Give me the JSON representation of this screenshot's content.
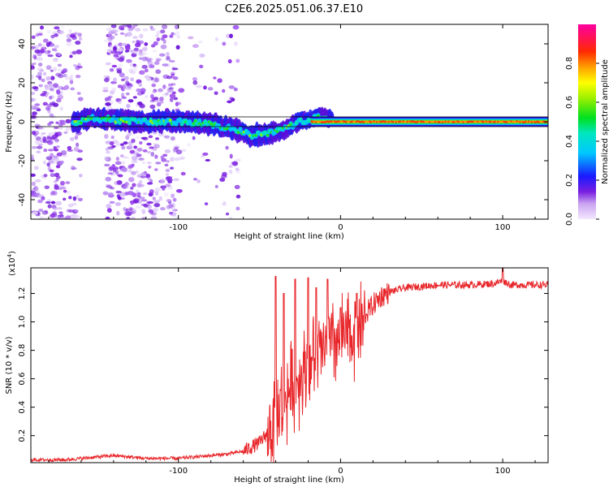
{
  "chart_data": [
    {
      "type": "heatmap",
      "title": "C2E6.2025.051.06.37.E10",
      "xlabel": "Height of straight line (km)",
      "ylabel": "Frequency (Hz)",
      "xlim": [
        -191,
        128
      ],
      "ylim": [
        -50,
        50
      ],
      "xticks": [
        "-100",
        "0",
        "100"
      ],
      "yticks": [
        "40",
        "20",
        "0",
        "-20",
        "-40"
      ],
      "colorbar_label": "Normalized spectral amplitude",
      "colorbar_range": [
        0,
        1
      ],
      "colorbar_ticks": [
        "0.0",
        "0.2",
        "0.4",
        "0.6",
        "0.8"
      ],
      "ridge": [
        {
          "x": -160,
          "y": 2
        },
        {
          "x": -140,
          "y": 1
        },
        {
          "x": -120,
          "y": 0
        },
        {
          "x": -100,
          "y": 0
        },
        {
          "x": -80,
          "y": -1
        },
        {
          "x": -65,
          "y": -4
        },
        {
          "x": -55,
          "y": -7
        },
        {
          "x": -45,
          "y": -6
        },
        {
          "x": -35,
          "y": -4
        },
        {
          "x": -25,
          "y": 0
        },
        {
          "x": -12,
          "y": 3
        },
        {
          "x": -5,
          "y": 1
        },
        {
          "x": 10,
          "y": 0
        },
        {
          "x": 50,
          "y": 0
        },
        {
          "x": 128,
          "y": 0
        }
      ]
    },
    {
      "type": "line",
      "xlabel": "Height of straight line (km)",
      "ylabel": "SNR (10 * v/v)",
      "y_scale_label": "(x10",
      "y_scale_exp": "4",
      "xlim": [
        -191,
        128
      ],
      "ylim": [
        0.01,
        1.38
      ],
      "xticks": [
        "-100",
        "0",
        "100"
      ],
      "yticks": [
        "0.2",
        "0.4",
        "0.6",
        "0.8",
        "1.0",
        "1.2"
      ],
      "color": "#e8262a",
      "series": [
        {
          "name": "SNR",
          "x": [
            -191,
            -170,
            -150,
            -140,
            -120,
            -100,
            -90,
            -80,
            -70,
            -60,
            -50,
            -45,
            -40,
            -35,
            -30,
            -25,
            -20,
            -15,
            -10,
            -5,
            0,
            5,
            10,
            15,
            20,
            25,
            30,
            40,
            50,
            60,
            80,
            95,
            100,
            105,
            128
          ],
          "values": [
            0.03,
            0.03,
            0.05,
            0.06,
            0.04,
            0.04,
            0.05,
            0.06,
            0.07,
            0.09,
            0.15,
            0.22,
            0.32,
            0.45,
            0.55,
            0.62,
            0.7,
            0.75,
            0.8,
            0.85,
            0.88,
            0.9,
            0.95,
            1.05,
            1.12,
            1.18,
            1.21,
            1.24,
            1.25,
            1.26,
            1.26,
            1.27,
            1.29,
            1.26,
            1.26
          ]
        }
      ],
      "spikes": [
        {
          "x": -40,
          "y": 1.32
        },
        {
          "x": -35,
          "y": 1.2
        },
        {
          "x": -28,
          "y": 1.3
        },
        {
          "x": -20,
          "y": 1.31
        },
        {
          "x": -15,
          "y": 1.24
        },
        {
          "x": -8,
          "y": 1.3
        },
        {
          "x": 0,
          "y": 1.1
        },
        {
          "x": 10,
          "y": 1.2
        },
        {
          "x": 100,
          "y": 1.38
        }
      ]
    }
  ]
}
